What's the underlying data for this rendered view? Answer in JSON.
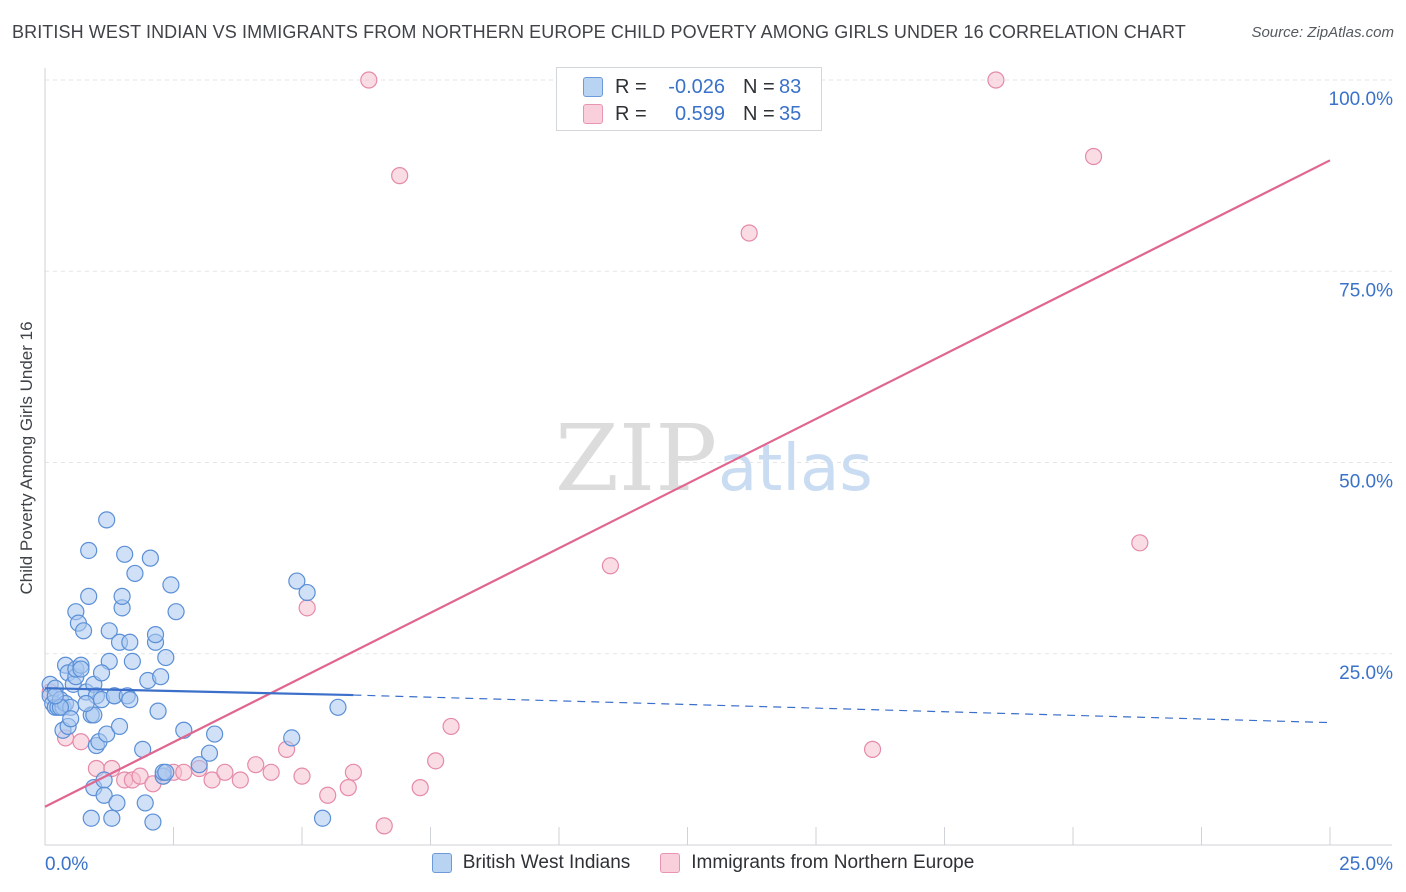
{
  "header": {
    "title": "BRITISH WEST INDIAN VS IMMIGRANTS FROM NORTHERN EUROPE CHILD POVERTY AMONG GIRLS UNDER 16 CORRELATION CHART",
    "source": "Source: ZipAtlas.com"
  },
  "watermark": {
    "zip": "ZIP",
    "atlas": "atlas"
  },
  "legend": {
    "rows": [
      {
        "r_label": "R =",
        "r_value": "-0.026",
        "n_label": "N =",
        "n_value": "83"
      },
      {
        "r_label": "R =",
        "r_value": "0.599",
        "n_label": "N =",
        "n_value": "35"
      }
    ]
  },
  "colors": {
    "blue_fill": "#a9c8f0",
    "blue_stroke": "#5b8fd6",
    "blue_line": "#3b6fc9",
    "pink_fill": "#f6bfd0",
    "pink_stroke": "#e58aa8",
    "pink_line": "#e0668f",
    "tick_text": "#3a72c9",
    "grid": "#e3e5e8"
  },
  "chart_data": {
    "type": "scatter",
    "title": "BRITISH WEST INDIAN VS IMMIGRANTS FROM NORTHERN EUROPE CHILD POVERTY AMONG GIRLS UNDER 16 CORRELATION CHART",
    "xlabel": "",
    "ylabel": "Child Poverty Among Girls Under 16",
    "xlim": [
      0,
      25
    ],
    "ylim": [
      0,
      100
    ],
    "x_tick_labels": [
      "0.0%",
      "25.0%"
    ],
    "y_ticks": [
      25,
      50,
      75,
      100
    ],
    "y_tick_labels": [
      "25.0%",
      "50.0%",
      "75.0%",
      "100.0%"
    ],
    "legend_position": "bottom",
    "series": [
      {
        "name": "British West Indians",
        "r": -0.026,
        "n": 83,
        "trend": {
          "x0": 0,
          "y0": 20.5,
          "x1": 6.0,
          "y1": 19.6,
          "dashed_to_x": 25,
          "dashed_to_y": 16.0
        },
        "points": [
          [
            0.1,
            21.0
          ],
          [
            0.1,
            19.5
          ],
          [
            0.15,
            18.5
          ],
          [
            0.2,
            18.0
          ],
          [
            0.2,
            20.5
          ],
          [
            0.25,
            18.0
          ],
          [
            0.3,
            19.0
          ],
          [
            0.35,
            15.0
          ],
          [
            0.35,
            18.0
          ],
          [
            0.4,
            23.5
          ],
          [
            0.4,
            18.5
          ],
          [
            0.45,
            22.5
          ],
          [
            0.45,
            15.5
          ],
          [
            0.5,
            18.0
          ],
          [
            0.55,
            21.0
          ],
          [
            0.6,
            22.0
          ],
          [
            0.6,
            23.0
          ],
          [
            0.6,
            30.5
          ],
          [
            0.65,
            29.0
          ],
          [
            0.7,
            23.5
          ],
          [
            0.7,
            23.0
          ],
          [
            0.75,
            28.0
          ],
          [
            0.8,
            20.0
          ],
          [
            0.85,
            38.5
          ],
          [
            0.85,
            32.5
          ],
          [
            0.9,
            3.5
          ],
          [
            0.9,
            17.0
          ],
          [
            0.95,
            7.5
          ],
          [
            0.95,
            17.0
          ],
          [
            0.95,
            21.0
          ],
          [
            1.0,
            13.0
          ],
          [
            1.0,
            19.5
          ],
          [
            1.05,
            13.5
          ],
          [
            1.1,
            19.0
          ],
          [
            1.15,
            8.5
          ],
          [
            1.15,
            6.5
          ],
          [
            1.2,
            42.5
          ],
          [
            1.2,
            14.5
          ],
          [
            1.25,
            28.0
          ],
          [
            1.25,
            24.0
          ],
          [
            1.3,
            3.5
          ],
          [
            1.35,
            19.5
          ],
          [
            1.35,
            19.5
          ],
          [
            1.4,
            5.5
          ],
          [
            1.45,
            26.5
          ],
          [
            1.45,
            15.5
          ],
          [
            1.5,
            31.0
          ],
          [
            1.5,
            32.5
          ],
          [
            1.55,
            38.0
          ],
          [
            1.6,
            19.5
          ],
          [
            1.65,
            19.0
          ],
          [
            1.65,
            26.5
          ],
          [
            1.7,
            24.0
          ],
          [
            1.75,
            35.5
          ],
          [
            1.9,
            12.5
          ],
          [
            1.95,
            5.5
          ],
          [
            2.0,
            21.5
          ],
          [
            2.05,
            37.5
          ],
          [
            2.1,
            3.0
          ],
          [
            2.15,
            26.5
          ],
          [
            2.15,
            27.5
          ],
          [
            2.2,
            17.5
          ],
          [
            2.25,
            22.0
          ],
          [
            2.3,
            9.0
          ],
          [
            2.3,
            9.5
          ],
          [
            2.35,
            9.5
          ],
          [
            2.35,
            24.5
          ],
          [
            2.45,
            34.0
          ],
          [
            2.55,
            30.5
          ],
          [
            2.7,
            15.0
          ],
          [
            3.0,
            10.5
          ],
          [
            3.2,
            12.0
          ],
          [
            3.3,
            14.5
          ],
          [
            4.8,
            14.0
          ],
          [
            4.9,
            34.5
          ],
          [
            5.1,
            33.0
          ],
          [
            5.4,
            3.5
          ],
          [
            5.7,
            18.0
          ],
          [
            0.3,
            18.0
          ],
          [
            0.8,
            18.5
          ],
          [
            1.1,
            22.5
          ],
          [
            0.2,
            19.5
          ],
          [
            0.5,
            16.5
          ]
        ]
      },
      {
        "name": "Immigrants from Northern Europe",
        "r": 0.599,
        "n": 35,
        "trend": {
          "x0": 0,
          "y0": 5.0,
          "x1": 25,
          "y1": 89.5
        },
        "points": [
          [
            0.1,
            20.0
          ],
          [
            0.4,
            14.0
          ],
          [
            0.7,
            13.5
          ],
          [
            1.0,
            10.0
          ],
          [
            1.3,
            10.0
          ],
          [
            1.55,
            8.5
          ],
          [
            1.7,
            8.5
          ],
          [
            1.85,
            9.0
          ],
          [
            2.1,
            8.0
          ],
          [
            2.3,
            9.0
          ],
          [
            2.5,
            9.5
          ],
          [
            2.7,
            9.5
          ],
          [
            3.0,
            10.0
          ],
          [
            3.25,
            8.5
          ],
          [
            3.5,
            9.5
          ],
          [
            3.8,
            8.5
          ],
          [
            4.1,
            10.5
          ],
          [
            4.4,
            9.5
          ],
          [
            4.7,
            12.5
          ],
          [
            5.0,
            9.0
          ],
          [
            5.1,
            31.0
          ],
          [
            5.5,
            6.5
          ],
          [
            5.9,
            7.5
          ],
          [
            6.0,
            9.5
          ],
          [
            6.3,
            100.0
          ],
          [
            6.6,
            2.5
          ],
          [
            6.9,
            87.5
          ],
          [
            7.3,
            7.5
          ],
          [
            7.6,
            11.0
          ],
          [
            7.9,
            15.5
          ],
          [
            11.0,
            36.5
          ],
          [
            13.7,
            80.0
          ],
          [
            16.1,
            12.5
          ],
          [
            18.5,
            100.0
          ],
          [
            20.4,
            90.0
          ]
        ]
      }
    ],
    "extra_points": {
      "Immigrants from Northern Europe": [
        [
          21.3,
          39.5
        ]
      ]
    }
  }
}
